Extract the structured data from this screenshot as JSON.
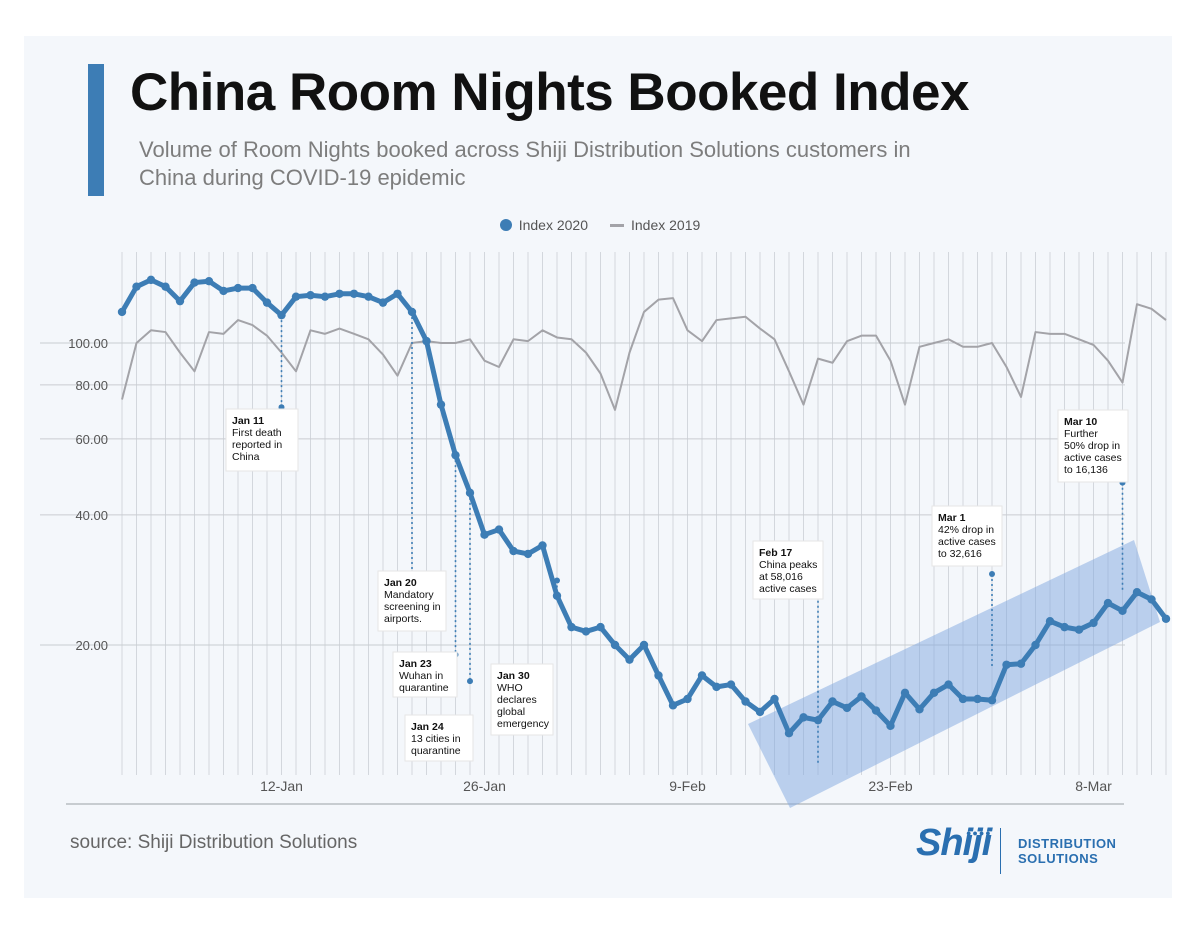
{
  "header": {
    "title": "China Room Nights Booked Index",
    "subtitle": "Volume of Room Nights booked across Shiji Distribution Solutions customers in China during COVID-19 epidemic"
  },
  "legend": {
    "index_2020": "Index 2020",
    "index_2019": "Index 2019"
  },
  "footer": {
    "source": "source: Shiji Distribution Solutions",
    "logo_name": "Shiji",
    "logo_sub_line1": "DISTRIBUTION",
    "logo_sub_line2": "SOLUTIONS"
  },
  "colors": {
    "series_2020": "#3d7db5",
    "series_2019": "#a3a3a8",
    "trend_band": "#7fa8e0",
    "brand_blue": "#2a6fb0",
    "accent_bar": "#3d7db5"
  },
  "chart_data": {
    "type": "line",
    "y_scale": "log",
    "ylim": [
      12,
      150
    ],
    "y_ticks": [
      20,
      40,
      60,
      80,
      100
    ],
    "y_tick_labels": [
      "20.00",
      "40.00",
      "60.00",
      "80.00",
      "100.00"
    ],
    "x_start_date": "2020-01-01",
    "x_ticks": [
      "12-Jan",
      "26-Jan",
      "9-Feb",
      "23-Feb",
      "8-Mar"
    ],
    "grid": true,
    "legend_position": "top-center",
    "series": [
      {
        "name": "Index 2020",
        "values": [
          118,
          135,
          140,
          135,
          125,
          138,
          139,
          132,
          134,
          134,
          124,
          116,
          128,
          129,
          128,
          130,
          130,
          128,
          124,
          130,
          118,
          101,
          72,
          55,
          45,
          36,
          37,
          33,
          32.5,
          34,
          26,
          22,
          21.5,
          22,
          20,
          18.5,
          20,
          17,
          14.5,
          15,
          17,
          16,
          16.2,
          14.8,
          14,
          15,
          12.5,
          13.6,
          13.4,
          14.8,
          14.3,
          15.2,
          14.1,
          13,
          15.5,
          14.2,
          15.5,
          16.2,
          15,
          15,
          14.9,
          18,
          18.1,
          20,
          22.7,
          22,
          21.7,
          22.5,
          25,
          24,
          26.5,
          25.5,
          23
        ]
      },
      {
        "name": "Index 2019",
        "values": [
          74,
          100,
          107,
          106,
          95,
          86,
          106,
          105,
          113,
          110,
          104,
          95,
          86,
          107,
          105,
          108,
          105,
          102,
          94,
          84,
          100,
          101,
          100,
          100,
          102,
          91,
          88,
          102,
          101,
          107,
          103,
          102,
          95,
          85,
          70,
          95,
          118,
          126,
          127,
          107,
          101,
          113,
          114,
          115,
          108,
          102,
          86,
          72,
          92,
          90,
          101,
          104,
          104,
          91,
          72,
          98,
          100,
          102,
          98,
          98,
          100,
          88,
          75,
          106,
          105,
          105,
          102,
          99,
          91,
          81,
          123,
          120,
          113
        ]
      }
    ],
    "annotations": [
      {
        "day": 11,
        "value": 71,
        "date_label": "Jan 11",
        "text": [
          "First death",
          "reported in",
          "China"
        ]
      },
      {
        "day": 20,
        "value": 28.5,
        "date_label": "Jan 20",
        "text": [
          "Mandatory",
          "screening in",
          "airports."
        ]
      },
      {
        "day": 23,
        "value": 19,
        "date_label": "Jan 23",
        "text": [
          "Wuhan in",
          "quarantine"
        ]
      },
      {
        "day": 24,
        "value": 16.5,
        "date_label": "Jan 24",
        "text": [
          "13 cities in",
          "quarantine"
        ]
      },
      {
        "day": 30,
        "value": 28.2,
        "date_label": "Jan 30",
        "text": [
          "WHO",
          "declares",
          "global",
          "emergency"
        ]
      },
      {
        "day": 48,
        "value": 26.7,
        "date_label": "Feb 17",
        "text": [
          "China peaks",
          "at 58,016",
          "active cases"
        ]
      },
      {
        "day": 60,
        "value": 29.2,
        "date_label": "Mar 1",
        "text": [
          "42% drop in",
          "active cases",
          "to 32,616"
        ]
      },
      {
        "day": 69,
        "value": 47.5,
        "date_label": "Mar 10",
        "text": [
          "Further",
          "50% drop in",
          "active cases",
          "to 16,136"
        ]
      }
    ]
  }
}
